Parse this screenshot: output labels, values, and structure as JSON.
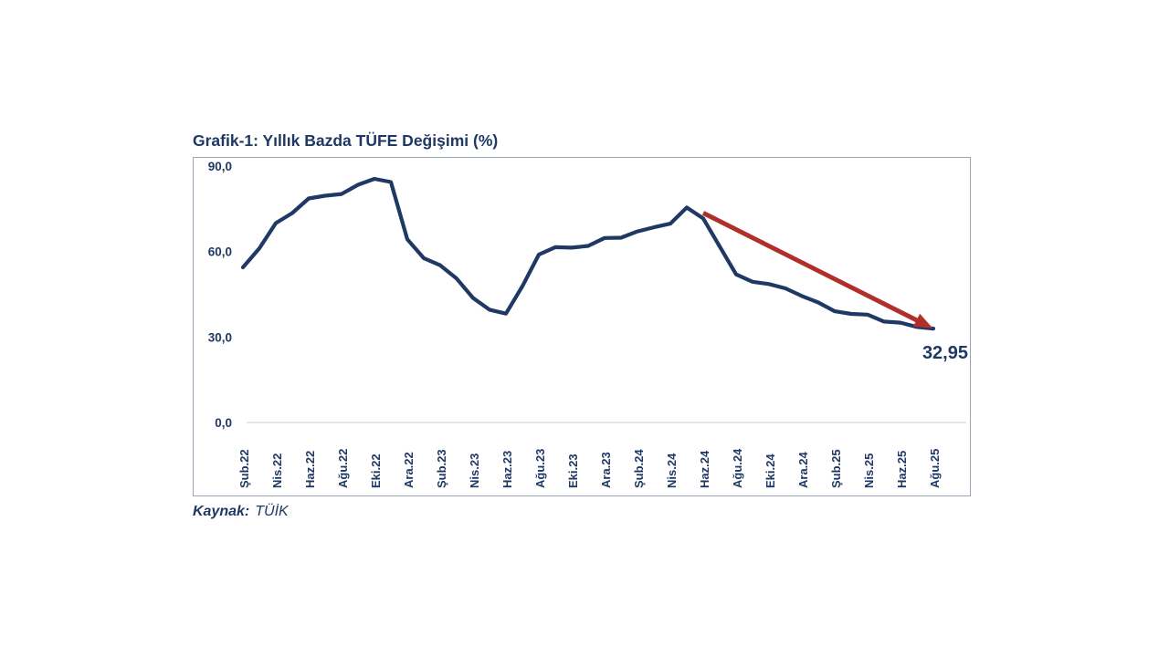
{
  "chart": {
    "title": "Grafik-1: Yıllık Bazda TÜFE Değişimi (%)",
    "source_label": "Kaynak:",
    "source_value": "TÜİK"
  },
  "chart_data": {
    "type": "line",
    "title": "Grafik-1: Yıllık Bazda TÜFE Değişimi (%)",
    "source": "Kaynak: TÜİK",
    "x_tick_labels": [
      "Şub.22",
      "Nis.22",
      "Haz.22",
      "Ağu.22",
      "Eki.22",
      "Ara.22",
      "Şub.23",
      "Nis.23",
      "Haz.23",
      "Ağu.23",
      "Eki.23",
      "Ara.23",
      "Şub.24",
      "Nis.24",
      "Haz.24",
      "Ağu.24",
      "Eki.24",
      "Ara.24",
      "Şub.25",
      "Nis.25",
      "Haz.25",
      "Ağu.25"
    ],
    "x_tick_step": 2,
    "series": [
      {
        "name": "Yıllık TÜFE değişimi (%)",
        "values": [
          54.44,
          61.14,
          69.97,
          73.5,
          78.62,
          79.6,
          80.21,
          83.45,
          85.51,
          84.39,
          64.27,
          57.68,
          55.18,
          50.51,
          43.68,
          39.59,
          38.21,
          47.83,
          58.94,
          61.53,
          61.36,
          61.98,
          64.77,
          64.86,
          67.07,
          68.5,
          69.8,
          75.45,
          71.6,
          61.78,
          51.97,
          49.38,
          48.58,
          47.09,
          44.38,
          42.12,
          39.05,
          38.1,
          37.86,
          35.41,
          35.05,
          33.52,
          32.95
        ]
      }
    ],
    "ylim": [
      0,
      90
    ],
    "y_tick_values": [
      90,
      60,
      30,
      0
    ],
    "y_tick_labels": [
      "90,0",
      "60,0",
      "30,0",
      "0,0"
    ],
    "grid": false,
    "legend": false,
    "annotation": {
      "label": "32,95",
      "arrow_from_index": 27,
      "arrow_to_index": 42
    },
    "colors": {
      "line": "#1f3864",
      "arrow": "#b02f2a",
      "text": "#1f3864",
      "border": "#9aa6b8",
      "baseline": "#d8d8d8"
    }
  }
}
